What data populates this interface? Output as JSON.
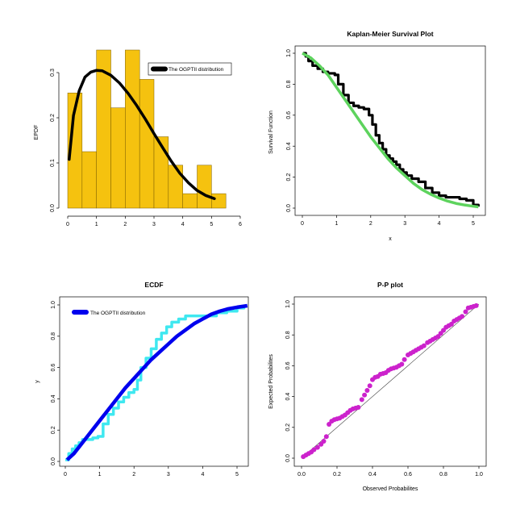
{
  "chart_data": [
    {
      "type": "bar",
      "title": "",
      "xlabel": "",
      "ylabel": "EPDF",
      "xlim": [
        0,
        6
      ],
      "ylim": [
        0,
        0.35
      ],
      "x_ticks": [
        "0",
        "1",
        "2",
        "3",
        "4",
        "5",
        "6"
      ],
      "y_ticks": [
        "0.0",
        "0.1",
        "0.2",
        "0.3"
      ],
      "bar_color": "#F5C20F",
      "bins": [
        {
          "from": 0.0,
          "to": 0.5,
          "value": 0.255
        },
        {
          "from": 0.5,
          "to": 1.0,
          "value": 0.125
        },
        {
          "from": 1.0,
          "to": 1.5,
          "value": 0.35
        },
        {
          "from": 1.5,
          "to": 2.0,
          "value": 0.222
        },
        {
          "from": 2.0,
          "to": 2.5,
          "value": 0.35
        },
        {
          "from": 2.5,
          "to": 3.0,
          "value": 0.285
        },
        {
          "from": 3.0,
          "to": 3.5,
          "value": 0.158
        },
        {
          "from": 3.5,
          "to": 4.0,
          "value": 0.095
        },
        {
          "from": 4.0,
          "to": 4.5,
          "value": 0.032
        },
        {
          "from": 4.5,
          "to": 5.0,
          "value": 0.095
        },
        {
          "from": 5.0,
          "to": 5.5,
          "value": 0.032
        }
      ],
      "series": [
        {
          "name": "The OGPTII distribution",
          "color": "#000000",
          "x": [
            0.05,
            0.2,
            0.4,
            0.6,
            0.8,
            1.0,
            1.2,
            1.5,
            1.8,
            2.1,
            2.4,
            2.7,
            3.0,
            3.3,
            3.6,
            3.9,
            4.2,
            4.5,
            4.8,
            5.1
          ],
          "y": [
            0.108,
            0.205,
            0.26,
            0.29,
            0.301,
            0.305,
            0.304,
            0.294,
            0.277,
            0.254,
            0.227,
            0.197,
            0.165,
            0.134,
            0.104,
            0.077,
            0.056,
            0.039,
            0.028,
            0.021
          ]
        }
      ],
      "legend_position": "top-right"
    },
    {
      "type": "line",
      "title": "Kaplan-Meier Survival Plot",
      "xlabel": "x",
      "ylabel": "Survival Function",
      "xlim": [
        0,
        5.2
      ],
      "ylim": [
        0,
        1
      ],
      "x_ticks": [
        "0",
        "1",
        "2",
        "3",
        "4",
        "5"
      ],
      "y_ticks": [
        "0.0",
        "0.2",
        "0.4",
        "0.6",
        "0.8",
        "1.0"
      ],
      "series": [
        {
          "name": "",
          "color": "#000000",
          "style": "step",
          "x": [
            0.02,
            0.1,
            0.18,
            0.3,
            0.45,
            0.6,
            0.75,
            0.95,
            1.05,
            1.2,
            1.35,
            1.5,
            1.65,
            1.8,
            1.95,
            2.05,
            2.15,
            2.25,
            2.35,
            2.45,
            2.55,
            2.65,
            2.75,
            2.85,
            2.95,
            3.05,
            3.2,
            3.4,
            3.6,
            3.8,
            4.0,
            4.2,
            4.4,
            4.6,
            4.8,
            5.0,
            5.15
          ],
          "y": [
            1.0,
            0.98,
            0.95,
            0.92,
            0.9,
            0.88,
            0.87,
            0.86,
            0.8,
            0.73,
            0.68,
            0.66,
            0.65,
            0.64,
            0.6,
            0.54,
            0.47,
            0.42,
            0.38,
            0.34,
            0.32,
            0.3,
            0.28,
            0.25,
            0.23,
            0.21,
            0.19,
            0.17,
            0.13,
            0.1,
            0.08,
            0.07,
            0.07,
            0.06,
            0.05,
            0.02,
            0.01
          ]
        },
        {
          "name": "",
          "color": "#5DD35D",
          "style": "line",
          "x": [
            0.0,
            0.25,
            0.5,
            0.75,
            1.0,
            1.25,
            1.5,
            1.75,
            2.0,
            2.25,
            2.5,
            2.75,
            3.0,
            3.25,
            3.5,
            3.75,
            4.0,
            4.25,
            4.5,
            4.75,
            5.0,
            5.15
          ],
          "y": [
            1.0,
            0.97,
            0.92,
            0.86,
            0.78,
            0.7,
            0.62,
            0.54,
            0.46,
            0.39,
            0.32,
            0.26,
            0.21,
            0.16,
            0.12,
            0.09,
            0.065,
            0.045,
            0.03,
            0.02,
            0.012,
            0.008
          ]
        }
      ]
    },
    {
      "type": "line",
      "title": "ECDF",
      "xlabel": "",
      "ylabel": "y",
      "xlim": [
        0,
        5.3
      ],
      "ylim": [
        0,
        1
      ],
      "x_ticks": [
        "0",
        "1",
        "2",
        "3",
        "4",
        "5"
      ],
      "y_ticks": [
        "0.0",
        "0.2",
        "0.4",
        "0.6",
        "0.8",
        "1.0"
      ],
      "series": [
        {
          "name": "",
          "color": "#3FE8F0",
          "style": "step",
          "x": [
            0.0,
            0.1,
            0.2,
            0.3,
            0.4,
            0.5,
            0.6,
            0.7,
            0.8,
            0.95,
            1.1,
            1.25,
            1.4,
            1.55,
            1.7,
            1.85,
            2.0,
            2.1,
            2.2,
            2.35,
            2.5,
            2.65,
            2.8,
            2.95,
            3.1,
            3.3,
            3.5,
            3.8,
            4.1,
            4.4,
            4.7,
            5.0,
            5.2
          ],
          "y": [
            0.01,
            0.05,
            0.08,
            0.1,
            0.12,
            0.14,
            0.14,
            0.14,
            0.15,
            0.16,
            0.24,
            0.3,
            0.34,
            0.38,
            0.41,
            0.44,
            0.46,
            0.52,
            0.6,
            0.66,
            0.72,
            0.78,
            0.82,
            0.86,
            0.89,
            0.91,
            0.93,
            0.93,
            0.93,
            0.95,
            0.96,
            0.98,
            0.99
          ]
        },
        {
          "name": "The OGPTII distribution",
          "color": "#0000EE",
          "style": "line",
          "x": [
            0.05,
            0.25,
            0.5,
            0.75,
            1.0,
            1.25,
            1.5,
            1.75,
            2.0,
            2.25,
            2.5,
            2.75,
            3.0,
            3.25,
            3.5,
            3.75,
            4.0,
            4.25,
            4.5,
            4.75,
            5.0,
            5.3
          ],
          "y": [
            0.01,
            0.05,
            0.12,
            0.19,
            0.26,
            0.33,
            0.4,
            0.47,
            0.53,
            0.59,
            0.65,
            0.7,
            0.75,
            0.8,
            0.84,
            0.88,
            0.91,
            0.94,
            0.96,
            0.975,
            0.985,
            0.995
          ]
        }
      ],
      "legend_position": "top-left"
    },
    {
      "type": "scatter",
      "title": "P-P plot",
      "xlabel": "Observed Probabilites",
      "ylabel": "Expected Probabilites",
      "xlim": [
        0,
        1
      ],
      "ylim": [
        0,
        1
      ],
      "x_ticks": [
        "0.0",
        "0.2",
        "0.4",
        "0.6",
        "0.8",
        "1.0"
      ],
      "y_ticks": [
        "0.0",
        "0.2",
        "0.4",
        "0.6",
        "0.8",
        "1.0"
      ],
      "point_color": "#CC22CC",
      "reference_line": true,
      "points": [
        [
          0.01,
          0.01
        ],
        [
          0.025,
          0.02
        ],
        [
          0.04,
          0.03
        ],
        [
          0.055,
          0.04
        ],
        [
          0.07,
          0.055
        ],
        [
          0.09,
          0.07
        ],
        [
          0.11,
          0.09
        ],
        [
          0.125,
          0.11
        ],
        [
          0.14,
          0.14
        ],
        [
          0.155,
          0.22
        ],
        [
          0.17,
          0.24
        ],
        [
          0.185,
          0.25
        ],
        [
          0.2,
          0.255
        ],
        [
          0.215,
          0.26
        ],
        [
          0.23,
          0.27
        ],
        [
          0.245,
          0.28
        ],
        [
          0.26,
          0.295
        ],
        [
          0.275,
          0.31
        ],
        [
          0.29,
          0.32
        ],
        [
          0.305,
          0.325
        ],
        [
          0.32,
          0.33
        ],
        [
          0.34,
          0.38
        ],
        [
          0.355,
          0.41
        ],
        [
          0.37,
          0.44
        ],
        [
          0.385,
          0.47
        ],
        [
          0.4,
          0.51
        ],
        [
          0.415,
          0.525
        ],
        [
          0.43,
          0.53
        ],
        [
          0.445,
          0.545
        ],
        [
          0.46,
          0.55
        ],
        [
          0.475,
          0.555
        ],
        [
          0.49,
          0.57
        ],
        [
          0.505,
          0.58
        ],
        [
          0.52,
          0.585
        ],
        [
          0.535,
          0.59
        ],
        [
          0.55,
          0.6
        ],
        [
          0.565,
          0.61
        ],
        [
          0.58,
          0.64
        ],
        [
          0.6,
          0.67
        ],
        [
          0.615,
          0.68
        ],
        [
          0.63,
          0.69
        ],
        [
          0.645,
          0.7
        ],
        [
          0.66,
          0.71
        ],
        [
          0.675,
          0.72
        ],
        [
          0.69,
          0.73
        ],
        [
          0.71,
          0.75
        ],
        [
          0.725,
          0.76
        ],
        [
          0.74,
          0.77
        ],
        [
          0.755,
          0.78
        ],
        [
          0.77,
          0.79
        ],
        [
          0.785,
          0.81
        ],
        [
          0.8,
          0.83
        ],
        [
          0.815,
          0.85
        ],
        [
          0.83,
          0.86
        ],
        [
          0.845,
          0.87
        ],
        [
          0.86,
          0.89
        ],
        [
          0.875,
          0.9
        ],
        [
          0.89,
          0.91
        ],
        [
          0.905,
          0.92
        ],
        [
          0.925,
          0.95
        ],
        [
          0.94,
          0.975
        ],
        [
          0.955,
          0.98
        ],
        [
          0.97,
          0.985
        ],
        [
          0.985,
          0.99
        ]
      ]
    }
  ]
}
